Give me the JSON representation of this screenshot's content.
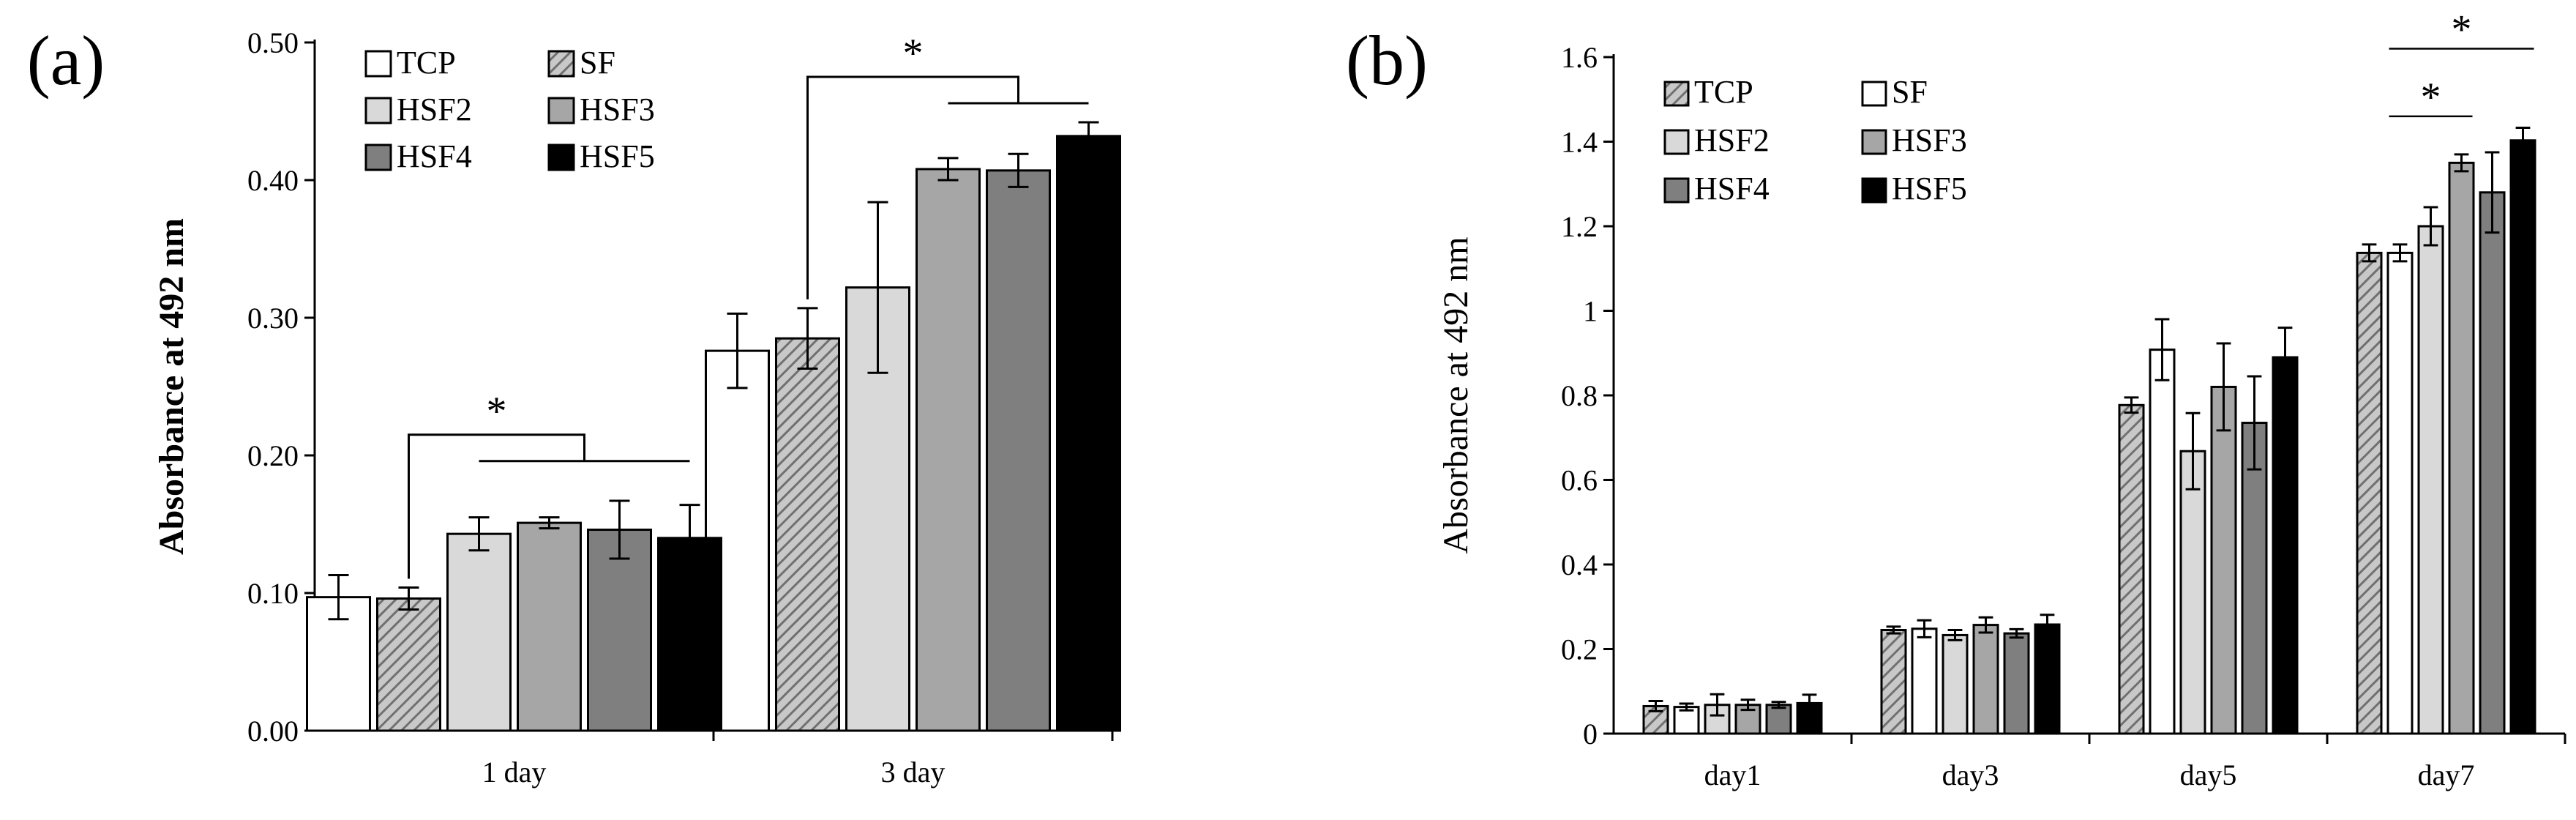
{
  "chart_data": [
    {
      "panel_label": "(a)",
      "type": "bar",
      "ylabel": "Absorbance at 492 nm",
      "xlabel": "",
      "ylim": [
        0,
        0.5
      ],
      "yticks": [
        "0.00",
        "0.10",
        "0.20",
        "0.30",
        "0.40",
        "0.50"
      ],
      "categories": [
        "1 day",
        "3 day"
      ],
      "series": [
        {
          "name": "TCP",
          "values": [
            0.097,
            0.276
          ],
          "errors": [
            0.016,
            0.027
          ],
          "fill": "#ffffff",
          "pattern": false
        },
        {
          "name": "SF",
          "values": [
            0.096,
            0.285
          ],
          "errors": [
            0.008,
            0.022
          ],
          "fill": "#9a9a9a",
          "pattern": true
        },
        {
          "name": "HSF2",
          "values": [
            0.143,
            0.322
          ],
          "errors": [
            0.012,
            0.062
          ],
          "fill": "#d9d9d9",
          "pattern": false
        },
        {
          "name": "HSF3",
          "values": [
            0.151,
            0.408
          ],
          "errors": [
            0.004,
            0.008
          ],
          "fill": "#a6a6a6",
          "pattern": false
        },
        {
          "name": "HSF4",
          "values": [
            0.146,
            0.407
          ],
          "errors": [
            0.021,
            0.012
          ],
          "fill": "#7f7f7f",
          "pattern": false
        },
        {
          "name": "HSF5",
          "values": [
            0.14,
            0.432
          ],
          "errors": [
            0.024,
            0.01
          ],
          "fill": "#000000",
          "pattern": false
        }
      ],
      "legend": {
        "placement": "top-left",
        "order": [
          "TCP",
          "SF",
          "HSF2",
          "HSF3",
          "HSF4",
          "HSF5"
        ]
      },
      "annotations": [
        {
          "text": "*",
          "category": 0,
          "from_series": 1,
          "to_series": [
            2,
            5
          ],
          "top_value": 0.215
        },
        {
          "text": "*",
          "category": 1,
          "from_series": 1,
          "to_series": [
            3,
            5
          ],
          "top_value": 0.475
        }
      ]
    },
    {
      "panel_label": "(b)",
      "type": "bar",
      "ylabel": "Absorbance at 492 nm",
      "xlabel": "",
      "ylim": [
        0,
        1.6
      ],
      "yticks": [
        "0",
        "0.2",
        "0.4",
        "0.6",
        "0.8",
        "1",
        "1.2",
        "1.4",
        "1.6"
      ],
      "categories": [
        "day1",
        "day3",
        "day5",
        "day7"
      ],
      "series": [
        {
          "name": "TCP",
          "values": [
            0.065,
            0.245,
            0.777,
            1.137
          ],
          "errors": [
            0.012,
            0.008,
            0.018,
            0.02
          ],
          "fill": "#9a9a9a",
          "pattern": true
        },
        {
          "name": "SF",
          "values": [
            0.063,
            0.248,
            0.908,
            1.137
          ],
          "errors": [
            0.008,
            0.02,
            0.072,
            0.02
          ],
          "fill": "#ffffff",
          "pattern": false
        },
        {
          "name": "HSF2",
          "values": [
            0.068,
            0.233,
            0.668,
            1.2
          ],
          "errors": [
            0.025,
            0.012,
            0.09,
            0.045
          ],
          "fill": "#d9d9d9",
          "pattern": false
        },
        {
          "name": "HSF3",
          "values": [
            0.068,
            0.257,
            0.82,
            1.35
          ],
          "errors": [
            0.012,
            0.018,
            0.103,
            0.02
          ],
          "fill": "#a6a6a6",
          "pattern": false
        },
        {
          "name": "HSF4",
          "values": [
            0.068,
            0.237,
            0.735,
            1.28
          ],
          "errors": [
            0.007,
            0.01,
            0.11,
            0.095
          ],
          "fill": "#7f7f7f",
          "pattern": false
        },
        {
          "name": "HSF5",
          "values": [
            0.072,
            0.258,
            0.89,
            1.403
          ],
          "errors": [
            0.02,
            0.023,
            0.07,
            0.03
          ],
          "fill": "#000000",
          "pattern": false
        }
      ],
      "legend": {
        "placement": "top-left",
        "order": [
          "TCP",
          "SF",
          "HSF2",
          "HSF3",
          "HSF4",
          "HSF5"
        ]
      },
      "annotations": [
        {
          "text": "*",
          "category": 3,
          "line_from_series": 1,
          "line_to_series": 3,
          "top_value": 1.46
        },
        {
          "text": "*",
          "category": 3,
          "line_from_series": 1,
          "line_to_series": 5,
          "top_value": 1.62
        }
      ]
    }
  ]
}
